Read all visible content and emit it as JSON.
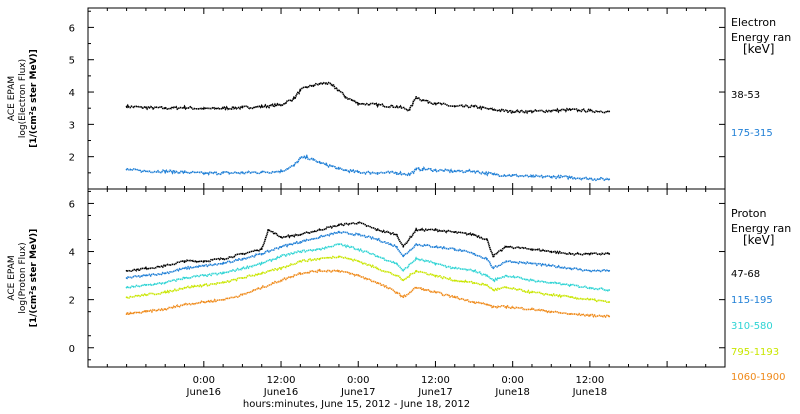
{
  "chart_data": [
    {
      "type": "scatter",
      "panel": "electron",
      "ylabel": [
        "ACE EPAM",
        "log(Electron Flux)",
        "[1/(cm²s ster MeV)]"
      ],
      "ylim": [
        1.0,
        6.6
      ],
      "yticks": [
        "2",
        "3",
        "4",
        "5",
        "6"
      ],
      "yticks_values": [
        2,
        3,
        4,
        5,
        6
      ],
      "legend_title": [
        "Electron",
        "Energy ran",
        "[keV]"
      ],
      "series": [
        {
          "name": "38-53",
          "color": "#000000",
          "x": [
            -12,
            -9,
            -6,
            -3,
            0,
            3,
            6,
            9,
            12,
            14,
            15,
            16,
            17,
            18,
            19,
            20,
            21,
            22,
            23,
            24,
            27,
            30,
            32,
            33,
            34,
            36,
            39,
            42,
            45,
            48,
            51,
            54,
            57,
            60,
            63
          ],
          "values": [
            3.55,
            3.52,
            3.5,
            3.52,
            3.48,
            3.5,
            3.52,
            3.55,
            3.6,
            3.8,
            4.05,
            4.15,
            4.2,
            4.25,
            4.28,
            4.2,
            4.05,
            3.85,
            3.75,
            3.65,
            3.6,
            3.55,
            3.45,
            3.85,
            3.75,
            3.65,
            3.55,
            3.55,
            3.45,
            3.4,
            3.4,
            3.42,
            3.45,
            3.42,
            3.4
          ]
        },
        {
          "name": "175-315",
          "color": "#1f7fd6",
          "x": [
            -12,
            -9,
            -6,
            -3,
            0,
            3,
            6,
            9,
            12,
            14,
            15,
            16,
            17,
            18,
            19,
            20,
            21,
            22,
            23,
            24,
            27,
            30,
            32,
            33,
            34,
            36,
            39,
            42,
            45,
            48,
            51,
            54,
            57,
            60,
            63
          ],
          "values": [
            1.6,
            1.55,
            1.55,
            1.52,
            1.48,
            1.5,
            1.5,
            1.52,
            1.55,
            1.72,
            1.95,
            1.98,
            1.9,
            1.82,
            1.75,
            1.7,
            1.62,
            1.58,
            1.55,
            1.52,
            1.5,
            1.5,
            1.45,
            1.6,
            1.62,
            1.58,
            1.55,
            1.55,
            1.45,
            1.42,
            1.38,
            1.38,
            1.36,
            1.32,
            1.3
          ]
        }
      ]
    },
    {
      "type": "scatter",
      "panel": "proton",
      "ylabel": [
        "ACE EPAM",
        "log(Proton Flux)",
        "[1/(cm²s ster MeV)]"
      ],
      "ylim": [
        -0.8,
        6.6
      ],
      "yticks": [
        "0",
        "2",
        "4",
        "6"
      ],
      "yticks_values": [
        0,
        2,
        4,
        6
      ],
      "legend_title": [
        "Proton",
        "Energy ran",
        "[keV]"
      ],
      "series": [
        {
          "name": "47-68",
          "color": "#000000",
          "x": [
            -12,
            -9,
            -6,
            -3,
            0,
            3,
            6,
            9,
            10,
            12,
            15,
            18,
            21,
            24,
            27,
            30,
            31,
            33,
            36,
            39,
            42,
            44,
            45,
            47,
            51,
            54,
            57,
            60,
            63
          ],
          "values": [
            3.2,
            3.3,
            3.4,
            3.6,
            3.6,
            3.7,
            3.9,
            4.1,
            4.9,
            4.6,
            4.7,
            4.9,
            5.1,
            5.2,
            4.9,
            4.7,
            4.2,
            4.9,
            4.9,
            4.8,
            4.7,
            4.5,
            3.8,
            4.2,
            4.1,
            4.0,
            3.9,
            3.9,
            3.9
          ]
        },
        {
          "name": "115-195",
          "color": "#1f7fd6",
          "x": [
            -12,
            -9,
            -6,
            -3,
            0,
            3,
            6,
            9,
            12,
            15,
            18,
            21,
            24,
            27,
            30,
            31,
            33,
            36,
            39,
            42,
            44,
            45,
            47,
            51,
            54,
            57,
            60,
            63
          ],
          "values": [
            2.9,
            3.0,
            3.1,
            3.3,
            3.4,
            3.5,
            3.7,
            3.9,
            4.2,
            4.4,
            4.6,
            4.8,
            4.7,
            4.5,
            4.2,
            3.8,
            4.3,
            4.2,
            4.1,
            3.9,
            3.7,
            3.3,
            3.6,
            3.5,
            3.4,
            3.3,
            3.2,
            3.2
          ]
        },
        {
          "name": "310-580",
          "color": "#2fd4d4",
          "x": [
            -12,
            -9,
            -6,
            -3,
            0,
            3,
            6,
            9,
            12,
            15,
            18,
            21,
            24,
            27,
            30,
            31,
            33,
            36,
            39,
            42,
            44,
            45,
            47,
            51,
            54,
            57,
            60,
            63
          ],
          "values": [
            2.5,
            2.6,
            2.7,
            2.9,
            3.0,
            3.1,
            3.3,
            3.5,
            3.8,
            4.0,
            4.1,
            4.3,
            4.1,
            3.8,
            3.5,
            3.2,
            3.7,
            3.5,
            3.3,
            3.2,
            3.0,
            2.8,
            3.0,
            2.8,
            2.7,
            2.6,
            2.5,
            2.4
          ]
        },
        {
          "name": "795-1193",
          "color": "#c9e600",
          "x": [
            -12,
            -9,
            -6,
            -3,
            0,
            3,
            6,
            9,
            12,
            15,
            18,
            21,
            24,
            27,
            30,
            31,
            33,
            36,
            39,
            42,
            44,
            45,
            47,
            51,
            54,
            57,
            60,
            63
          ],
          "values": [
            2.1,
            2.2,
            2.3,
            2.5,
            2.6,
            2.7,
            2.9,
            3.1,
            3.3,
            3.6,
            3.7,
            3.8,
            3.6,
            3.3,
            3.0,
            2.8,
            3.2,
            3.0,
            2.8,
            2.7,
            2.6,
            2.4,
            2.5,
            2.3,
            2.2,
            2.1,
            2.0,
            1.9
          ]
        },
        {
          "name": "1060-1900",
          "color": "#ef8a1a",
          "x": [
            -12,
            -9,
            -6,
            -3,
            0,
            3,
            6,
            9,
            12,
            15,
            18,
            21,
            24,
            27,
            30,
            31,
            33,
            36,
            39,
            42,
            44,
            45,
            47,
            51,
            54,
            57,
            60,
            63
          ],
          "values": [
            1.4,
            1.5,
            1.6,
            1.8,
            1.9,
            2.0,
            2.2,
            2.5,
            2.8,
            3.1,
            3.2,
            3.2,
            3.0,
            2.7,
            2.3,
            2.1,
            2.5,
            2.3,
            2.1,
            1.9,
            1.8,
            1.7,
            1.7,
            1.6,
            1.5,
            1.4,
            1.35,
            1.3
          ]
        }
      ]
    }
  ],
  "xaxis": {
    "title": "hours:minutes, June 15, 2012 - June 18, 2012",
    "range": [
      -18,
      81
    ],
    "major_ticks": [
      0,
      12,
      24,
      36,
      48,
      60,
      72
    ],
    "minor_step": 3,
    "labels": [
      {
        "x": 0,
        "time": "0:00",
        "day": "June16"
      },
      {
        "x": 12,
        "time": "12:00",
        "day": "June16"
      },
      {
        "x": 24,
        "time": "0:00",
        "day": "June17"
      },
      {
        "x": 36,
        "time": "12:00",
        "day": "June17"
      },
      {
        "x": 48,
        "time": "0:00",
        "day": "June18"
      },
      {
        "x": 60,
        "time": "12:00",
        "day": "June18"
      }
    ]
  }
}
